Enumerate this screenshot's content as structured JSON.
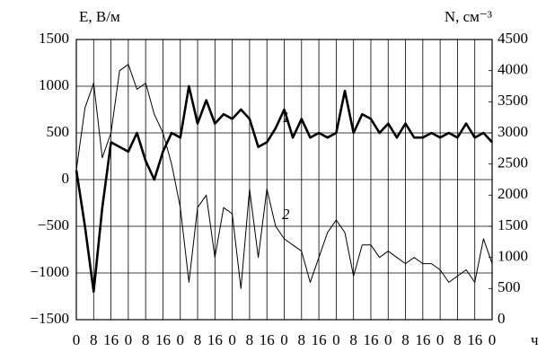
{
  "chart_data": {
    "type": "line",
    "ylabel": "E, В/м",
    "y2label": "N, см⁻³",
    "xlabel": "ч",
    "x": [
      0,
      4,
      8,
      12,
      16,
      20,
      24,
      28,
      32,
      36,
      40,
      44,
      48,
      52,
      56,
      60,
      64,
      68,
      72,
      76,
      80,
      84,
      88,
      92,
      96,
      100,
      104,
      108,
      112,
      116,
      120,
      124,
      128,
      132,
      136,
      140,
      144,
      148,
      152,
      156,
      160,
      164,
      168,
      172,
      176,
      180,
      184,
      188,
      192
    ],
    "xlim": [
      0,
      192
    ],
    "xticks": [
      {
        "value": 0,
        "label": "0"
      },
      {
        "value": 8,
        "label": "8"
      },
      {
        "value": 16,
        "label": "16"
      },
      {
        "value": 24,
        "label": "0"
      },
      {
        "value": 32,
        "label": "8"
      },
      {
        "value": 40,
        "label": "16"
      },
      {
        "value": 48,
        "label": "0"
      },
      {
        "value": 56,
        "label": "8"
      },
      {
        "value": 64,
        "label": "16"
      },
      {
        "value": 72,
        "label": "0"
      },
      {
        "value": 80,
        "label": "8"
      },
      {
        "value": 88,
        "label": "16"
      },
      {
        "value": 96,
        "label": "0"
      },
      {
        "value": 104,
        "label": "8"
      },
      {
        "value": 112,
        "label": "16"
      },
      {
        "value": 120,
        "label": "0"
      },
      {
        "value": 128,
        "label": "8"
      },
      {
        "value": 136,
        "label": "16"
      },
      {
        "value": 144,
        "label": "0"
      },
      {
        "value": 152,
        "label": "8"
      },
      {
        "value": 160,
        "label": "16"
      },
      {
        "value": 168,
        "label": "0"
      },
      {
        "value": 176,
        "label": "8"
      },
      {
        "value": 184,
        "label": "16"
      },
      {
        "value": 192,
        "label": "0"
      }
    ],
    "ylim": [
      -1500,
      1500
    ],
    "yticks": [
      {
        "value": -1500,
        "label": "−1500"
      },
      {
        "value": -1000,
        "label": "−1000"
      },
      {
        "value": -500,
        "label": "−500"
      },
      0,
      500,
      1000,
      1500
    ],
    "y2lim": [
      0,
      4500
    ],
    "y2ticks": [
      0,
      500,
      1000,
      1500,
      2000,
      2500,
      3000,
      3500,
      4000,
      4500
    ],
    "grid": true,
    "series": [
      {
        "name": "1",
        "color": "#000000",
        "width": 2.6,
        "values": [
          100,
          -500,
          -1200,
          -300,
          400,
          350,
          300,
          500,
          200,
          0,
          300,
          500,
          450,
          1000,
          600,
          850,
          600,
          700,
          650,
          750,
          650,
          350,
          400,
          550,
          750,
          450,
          650,
          450,
          500,
          450,
          500,
          950,
          500,
          700,
          650,
          500,
          600,
          450,
          600,
          450,
          450,
          500,
          450,
          500,
          450,
          600,
          450,
          500,
          400
        ]
      },
      {
        "name": "2",
        "color": "#000000",
        "width": 1,
        "axis": "y2",
        "values": [
          2400,
          3400,
          3800,
          2600,
          3000,
          4000,
          4100,
          3700,
          3800,
          3300,
          3000,
          2500,
          1800,
          600,
          1800,
          2000,
          1000,
          1800,
          1700,
          500,
          2100,
          1000,
          2100,
          1500,
          1300,
          1200,
          1100,
          600,
          1000,
          1400,
          1600,
          1400,
          700,
          1200,
          1200,
          1000,
          1100,
          1000,
          900,
          1000,
          900,
          900,
          800,
          600,
          700,
          800,
          600,
          1300,
          900
        ]
      }
    ]
  }
}
